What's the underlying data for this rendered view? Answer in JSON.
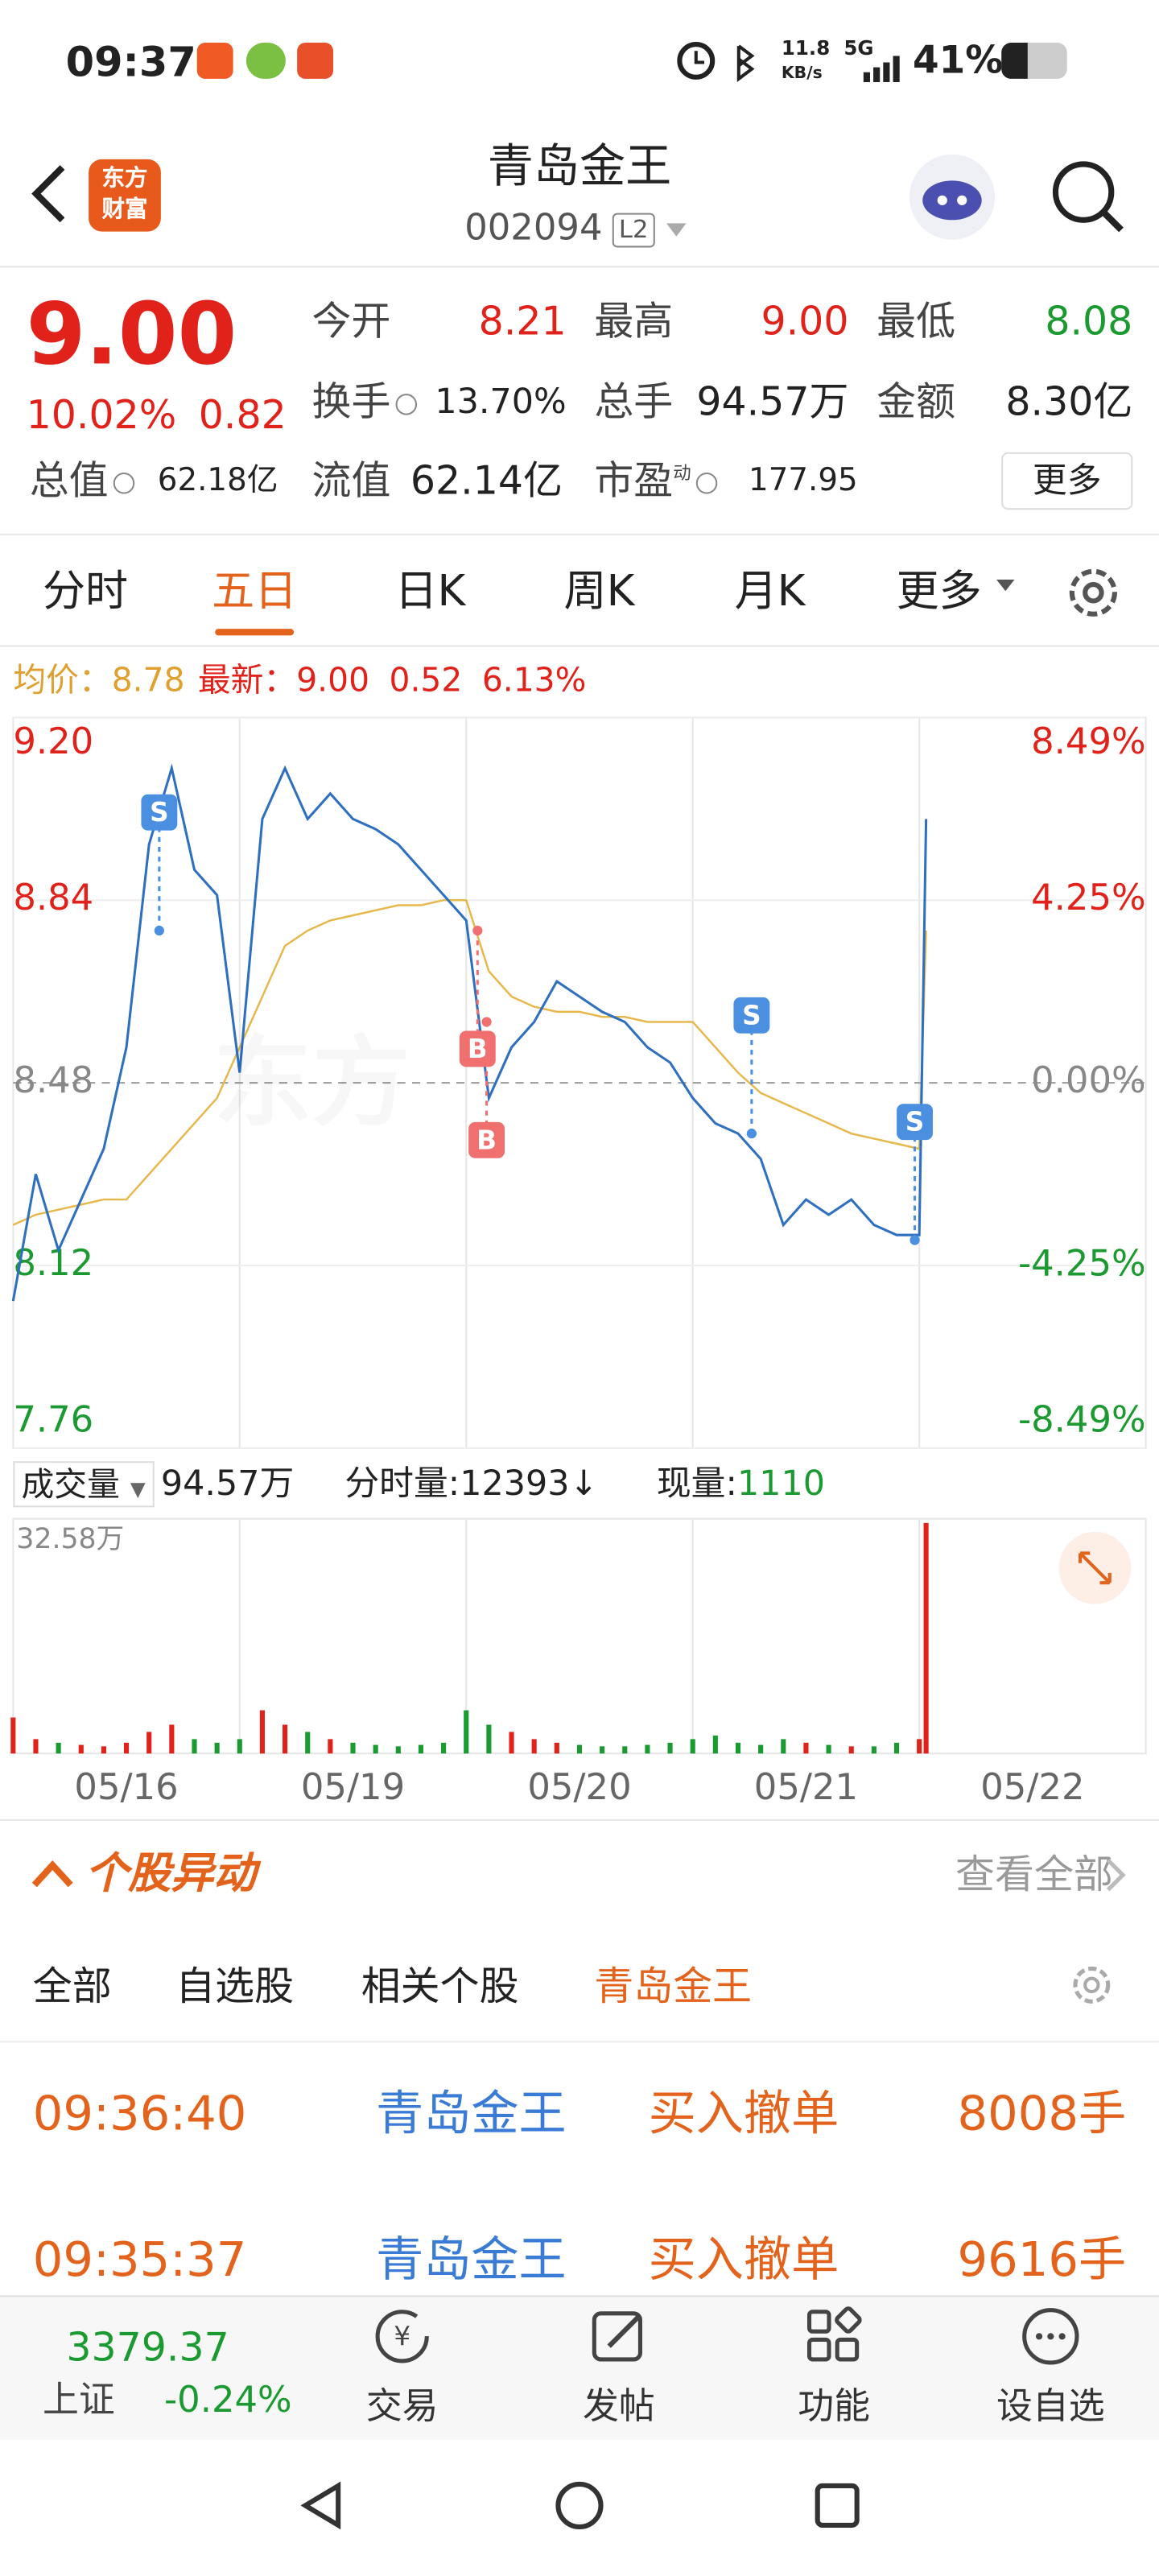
{
  "status": {
    "time": "09:37",
    "speed": "11.8",
    "speed_unit": "KB/s",
    "network": "5G",
    "battery": "41%"
  },
  "header": {
    "logo": [
      "东方",
      "财富"
    ],
    "title": "青岛金王",
    "code": "002094",
    "level": "L2"
  },
  "quote": {
    "price": "9.00",
    "change_pct": "10.02%",
    "change": "0.82",
    "color": "#e0221b",
    "rows": [
      [
        {
          "label": "今开",
          "value": "8.21",
          "color": "#e0221b"
        },
        {
          "label": "最高",
          "value": "9.00",
          "color": "#e0221b"
        },
        {
          "label": "最低",
          "value": "8.08",
          "color": "#1a9a30"
        }
      ],
      [
        {
          "label": "换手",
          "value": "13.70%"
        },
        {
          "label": "总手",
          "value": "94.57万"
        },
        {
          "label": "金额",
          "value": "8.30亿"
        }
      ],
      [
        {
          "label": "总值",
          "value": "62.18亿"
        },
        {
          "label": "流值",
          "value": "62.14亿"
        },
        {
          "label": "市盈",
          "mark": "动",
          "value": "177.95"
        }
      ]
    ],
    "more": "更多"
  },
  "tabs": {
    "items": [
      "分时",
      "五日",
      "日K",
      "周K",
      "月K",
      "更多"
    ],
    "active": 1
  },
  "info": {
    "avg_label": "均价：",
    "avg": "8.78",
    "latest_label": "最新：",
    "latest": "9.00",
    "change": "0.52",
    "pct": "6.13%"
  },
  "chart_data": [
    {
      "type": "line",
      "xlim": [
        0,
        5
      ],
      "ylim": [
        7.76,
        9.2
      ],
      "yticks": [
        {
          "value": 9.2,
          "label": "9.20"
        },
        8.84,
        8.48,
        8.12,
        7.76
      ],
      "y2lim": [
        -8.49,
        8.49
      ],
      "y2ticks": [
        {
          "value": 8.49,
          "label": "8.49%"
        },
        {
          "value": 4.25,
          "label": "4.25%"
        },
        {
          "value": 0,
          "label": "0.00%"
        },
        {
          "value": -4.25,
          "label": "-4.25%"
        },
        {
          "value": -8.49,
          "label": "-8.49%"
        }
      ],
      "x": [
        0,
        0.1,
        0.2,
        0.3,
        0.4,
        0.5,
        0.6,
        0.7,
        0.8,
        0.9,
        1,
        1.1,
        1.2,
        1.3,
        1.4,
        1.5,
        1.6,
        1.7,
        1.8,
        1.9,
        2,
        2.1,
        2.2,
        2.3,
        2.4,
        2.5,
        2.6,
        2.7,
        2.8,
        2.9,
        3,
        3.1,
        3.2,
        3.3,
        3.4,
        3.5,
        3.6,
        3.7,
        3.8,
        3.9,
        4,
        4.03
      ],
      "series": [
        {
          "color": "#2f6fbf",
          "values": [
            8.05,
            8.3,
            8.15,
            8.25,
            8.35,
            8.55,
            8.95,
            9.1,
            8.9,
            8.85,
            8.5,
            9,
            9.1,
            9,
            9.05,
            9,
            8.98,
            8.95,
            8.9,
            8.85,
            8.8,
            8.45,
            8.55,
            8.6,
            8.68,
            8.65,
            8.62,
            8.6,
            8.55,
            8.52,
            8.45,
            8.4,
            8.38,
            8.33,
            8.2,
            8.25,
            8.22,
            8.25,
            8.2,
            8.18,
            8.18,
            9
          ]
        },
        {
          "color": "#e6b84a",
          "values": [
            8.2,
            8.22,
            8.23,
            8.24,
            8.25,
            8.25,
            8.3,
            8.35,
            8.4,
            8.45,
            8.55,
            8.65,
            8.75,
            8.78,
            8.8,
            8.81,
            8.82,
            8.83,
            8.83,
            8.84,
            8.84,
            8.7,
            8.65,
            8.63,
            8.62,
            8.62,
            8.61,
            8.61,
            8.6,
            8.6,
            8.6,
            8.55,
            8.5,
            8.46,
            8.44,
            8.42,
            8.4,
            8.38,
            8.37,
            8.36,
            8.35,
            8.78
          ]
        }
      ],
      "annotations": [
        {
          "text": "S",
          "x": 0.645,
          "y": 8.78,
          "dir": "up",
          "color": "#4a8fe0"
        },
        {
          "text": "B",
          "x": 2.05,
          "y": 8.78,
          "dir": "down",
          "color": "#f07070"
        },
        {
          "text": "B",
          "x": 2.09,
          "y": 8.6,
          "dir": "down",
          "color": "#f07070"
        },
        {
          "text": "S",
          "x": 3.26,
          "y": 8.38,
          "dir": "up",
          "color": "#4a8fe0"
        },
        {
          "text": "S",
          "x": 3.98,
          "y": 8.17,
          "dir": "up",
          "color": "#4a8fe0"
        }
      ]
    },
    {
      "type": "bar",
      "xlim": [
        0,
        5
      ],
      "ylim": [
        0,
        32.58
      ],
      "yticks": [
        {
          "value": 32.58,
          "label": "32.58万"
        }
      ],
      "xticks": [
        {
          "value": 0.5,
          "label": "05/16"
        },
        {
          "value": 1.5,
          "label": "05/19"
        },
        {
          "value": 2.5,
          "label": "05/20"
        },
        {
          "value": 3.5,
          "label": "05/21"
        },
        {
          "value": 4.5,
          "label": "05/22"
        }
      ],
      "x": [
        0,
        0.1,
        0.2,
        0.3,
        0.4,
        0.5,
        0.6,
        0.7,
        0.8,
        0.9,
        1,
        1.1,
        1.2,
        1.3,
        1.4,
        1.5,
        1.6,
        1.7,
        1.8,
        1.9,
        2,
        2.1,
        2.2,
        2.3,
        2.4,
        2.5,
        2.6,
        2.7,
        2.8,
        2.9,
        3,
        3.1,
        3.2,
        3.3,
        3.4,
        3.5,
        3.6,
        3.7,
        3.8,
        3.9,
        4,
        4.03
      ],
      "values": [
        5,
        2,
        1.5,
        1.2,
        1,
        1.5,
        3,
        4,
        2,
        1.5,
        2,
        6,
        4,
        3,
        2,
        1.5,
        1.2,
        1,
        1.2,
        1.5,
        6,
        4,
        3,
        2,
        1.5,
        1.2,
        1,
        1,
        1.2,
        1.5,
        2,
        2.5,
        1.5,
        1.2,
        2,
        1.5,
        1.2,
        1,
        1,
        1.5,
        2,
        32
      ]
    }
  ],
  "volume_info": {
    "label": "成交量",
    "total": "94.57万",
    "tick_label": "分时量:",
    "tick": "12393",
    "tick_arrow": "↓",
    "now_label": "现量:",
    "now": "1110"
  },
  "movement": {
    "title": "个股异动",
    "view_all": "查看全部",
    "filters": [
      "全部",
      "自选股",
      "相关个股",
      "青岛金王"
    ],
    "active_filter": 3,
    "rows": [
      [
        "09:36:40",
        "青岛金王",
        "买入撤单",
        "8008手"
      ],
      [
        "09:35:37",
        "青岛金王",
        "买入撤单",
        "9616手"
      ]
    ]
  },
  "bottom": {
    "index_value": "3379.37",
    "index_name": "上证",
    "index_change": "-0.24%",
    "items": [
      "交易",
      "发帖",
      "功能",
      "设自选"
    ]
  }
}
